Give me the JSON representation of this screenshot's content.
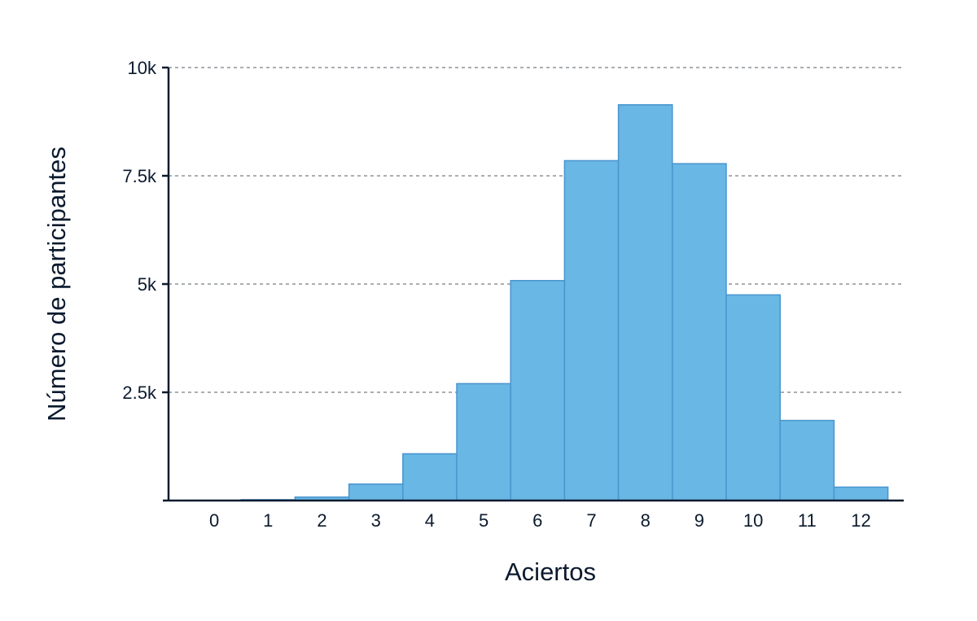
{
  "chart_data": {
    "type": "bar",
    "title": "",
    "xlabel": "Aciertos",
    "ylabel": "Número de participantes",
    "categories": [
      "0",
      "1",
      "2",
      "3",
      "4",
      "5",
      "6",
      "7",
      "8",
      "9",
      "10",
      "11",
      "12"
    ],
    "values": [
      5,
      20,
      80,
      380,
      1080,
      2700,
      5080,
      7850,
      9140,
      7780,
      4750,
      1850,
      310
    ],
    "ylim": [
      0,
      10000
    ],
    "yticks": [
      {
        "value": 2500,
        "label": "2.5k"
      },
      {
        "value": 5000,
        "label": "5k"
      },
      {
        "value": 7500,
        "label": "7.5k"
      },
      {
        "value": 10000,
        "label": "10k"
      }
    ],
    "grid": true,
    "bar_color": "#68b7e4",
    "bar_edge_color": "#4a95d0"
  }
}
